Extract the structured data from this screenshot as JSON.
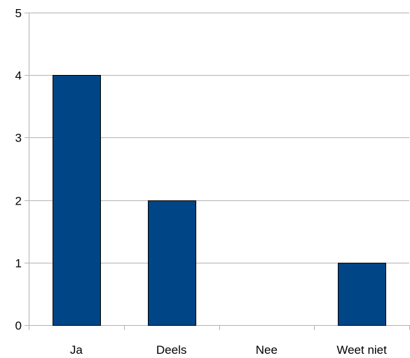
{
  "chart_data": {
    "type": "bar",
    "categories": [
      "Ja",
      "Deels",
      "Nee",
      "Weet niet"
    ],
    "values": [
      4,
      2,
      0,
      1
    ],
    "title": "",
    "xlabel": "",
    "ylabel": "",
    "ylim": [
      0,
      5
    ],
    "yticks": [
      "0",
      "1",
      "2",
      "3",
      "4",
      "5"
    ],
    "grid": "horizontal",
    "legend": "none",
    "colors": {
      "bar": "#004586",
      "bar_border": "#000000",
      "grid": "#b3b3b3",
      "axis": "#b3b3b3"
    }
  }
}
